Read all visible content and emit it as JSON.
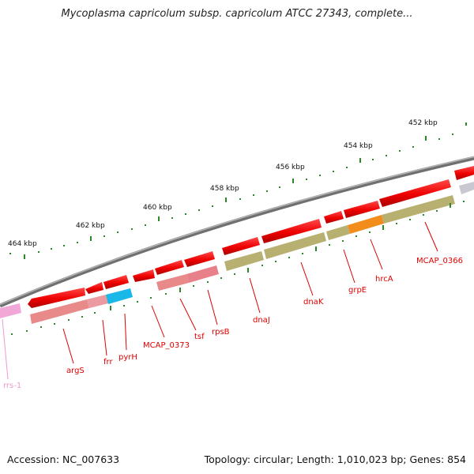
{
  "title": "Mycoplasma capricolum subsp. capricolum ATCC 27343, complete...",
  "footer": {
    "accession": "Accession: NC_007633",
    "summary": "Topology: circular; Length: 1,010,023 bp; Genes: 854"
  },
  "kbp_labels": [
    "452 kbp",
    "454 kbp",
    "456 kbp",
    "458 kbp",
    "460 kbp",
    "462 kbp",
    "464 kbp"
  ],
  "genes": [
    {
      "name": "rrs-1",
      "color": "#ee99cc"
    },
    {
      "name": "argS",
      "color": "#dd0000"
    },
    {
      "name": "frr",
      "color": "#dd0000"
    },
    {
      "name": "pyrH",
      "color": "#dd0000"
    },
    {
      "name": "MCAP_0373",
      "color": "#dd0000"
    },
    {
      "name": "tsf",
      "color": "#dd0000"
    },
    {
      "name": "rpsB",
      "color": "#dd0000"
    },
    {
      "name": "dnaJ",
      "color": "#dd0000"
    },
    {
      "name": "dnaK",
      "color": "#dd0000"
    },
    {
      "name": "grpE",
      "color": "#dd0000"
    },
    {
      "name": "hrcA",
      "color": "#dd0000"
    },
    {
      "name": "MCAP_0366",
      "color": "#dd0000"
    }
  ],
  "colors": {
    "backbone": "#808080",
    "cds": "#ee0000",
    "tick": "#2a8a2a",
    "track_pink": "#e88a8a",
    "track_olive": "#b8b070",
    "track_orange": "#f28c1a",
    "track_cyan": "#1ab8e8",
    "track_gray": "#c0c0c8"
  }
}
